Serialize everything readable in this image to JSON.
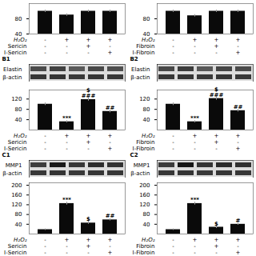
{
  "chart_data": [
    {
      "type": "bar",
      "categories": [
        null,
        null,
        null,
        null
      ],
      "values": [
        100,
        90,
        100,
        100
      ],
      "errors": [
        3,
        3,
        3,
        3
      ],
      "color": "#0a0a0a",
      "ylim": [
        40,
        120
      ],
      "yticks": [
        40,
        80
      ],
      "table": [
        {
          "name": "H₂O₂",
          "values": [
            "-",
            "+",
            "+",
            "+"
          ]
        },
        {
          "name": "Sericin",
          "values": [
            "-",
            "-",
            "+",
            "-"
          ]
        },
        {
          "name": "I-Sericin",
          "values": [
            "-",
            "-",
            "-",
            "+"
          ]
        }
      ]
    },
    {
      "type": "bar",
      "categories": [
        null,
        null,
        null,
        null
      ],
      "values": [
        100,
        88,
        100,
        100
      ],
      "errors": [
        3,
        3,
        3,
        3
      ],
      "color": "#0a0a0a",
      "ylim": [
        40,
        120
      ],
      "yticks": [
        40,
        80
      ],
      "table": [
        {
          "name": "H₂O₂",
          "values": [
            "-",
            "+",
            "+",
            "+"
          ]
        },
        {
          "name": "Fibroin",
          "values": [
            "-",
            "-",
            "+",
            "-"
          ]
        },
        {
          "name": "I-Fibroin",
          "values": [
            "-",
            "-",
            "-",
            "+"
          ]
        }
      ]
    },
    {
      "type": "blot",
      "title": "B1",
      "categories": [
        "Elastin",
        "β-actin"
      ],
      "cells": [
        [
          75,
          65,
          90,
          72,
          78
        ],
        [
          55,
          52,
          57,
          54,
          55
        ]
      ]
    },
    {
      "type": "bar",
      "categories": [
        null,
        null,
        null,
        null
      ],
      "values": [
        100,
        32,
        118,
        72
      ],
      "errors": [
        5,
        4,
        6,
        5
      ],
      "color": "#0a0a0a",
      "ylim": [
        0,
        155
      ],
      "yticks": [
        40,
        80,
        120
      ],
      "annotations": [
        {
          "text": "***",
          "index": 1,
          "y": 40
        },
        {
          "text": "$\n###",
          "index": 2,
          "y": 126
        },
        {
          "text": "##",
          "index": 3,
          "y": 80
        }
      ],
      "table": [
        {
          "name": "H₂O₂",
          "values": [
            "-",
            "+",
            "+",
            "+"
          ]
        },
        {
          "name": "Sericin",
          "values": [
            "-",
            "-",
            "+",
            "-"
          ]
        },
        {
          "name": "I-Sericin",
          "values": [
            "-",
            "-",
            "-",
            "+"
          ]
        }
      ]
    },
    {
      "type": "blot",
      "title": "B2",
      "categories": [
        "Elastin",
        "β-actin"
      ],
      "cells": [
        [
          72,
          60,
          88,
          70,
          75
        ],
        [
          55,
          52,
          57,
          54,
          55
        ]
      ]
    },
    {
      "type": "bar",
      "categories": [
        null,
        null,
        null,
        null
      ],
      "values": [
        100,
        32,
        122,
        75
      ],
      "errors": [
        5,
        4,
        6,
        5
      ],
      "color": "#0a0a0a",
      "ylim": [
        0,
        155
      ],
      "yticks": [
        40,
        80,
        120
      ],
      "annotations": [
        {
          "text": "***",
          "index": 1,
          "y": 40
        },
        {
          "text": "$\n###",
          "index": 2,
          "y": 130
        },
        {
          "text": "##",
          "index": 3,
          "y": 83
        }
      ],
      "table": [
        {
          "name": "H₂O₂",
          "values": [
            "-",
            "+",
            "+",
            "+"
          ]
        },
        {
          "name": "Fibroin",
          "values": [
            "-",
            "-",
            "+",
            "-"
          ]
        },
        {
          "name": "I-Fibroin",
          "values": [
            "-",
            "-",
            "-",
            "+"
          ]
        }
      ]
    },
    {
      "type": "blot",
      "title": "C1",
      "categories": [
        "MMP1",
        "β-actin"
      ],
      "cells": [
        [
          60,
          25,
          55,
          45,
          50
        ],
        [
          55,
          52,
          57,
          54,
          55
        ]
      ]
    },
    {
      "type": "bar",
      "categories": [
        null,
        null,
        null,
        null
      ],
      "values": [
        18,
        125,
        45,
        58
      ],
      "errors": [
        3,
        6,
        5,
        4
      ],
      "color": "#0a0a0a",
      "ylim": [
        0,
        210
      ],
      "yticks": [
        40,
        80,
        120,
        160,
        200
      ],
      "annotations": [
        {
          "text": "***",
          "index": 1,
          "y": 133
        },
        {
          "text": "$",
          "index": 2,
          "y": 53
        },
        {
          "text": "##",
          "index": 3,
          "y": 66
        }
      ],
      "table": [
        {
          "name": "H₂O₂",
          "values": [
            "-",
            "+",
            "+",
            "+"
          ]
        },
        {
          "name": "Sericin",
          "values": [
            "-",
            "-",
            "+",
            "-"
          ]
        },
        {
          "name": "I-Sericin",
          "values": [
            "-",
            "-",
            "-",
            "+"
          ]
        }
      ]
    },
    {
      "type": "blot",
      "title": "C2",
      "categories": [
        "MMP1",
        "β-actin"
      ],
      "cells": [
        [
          58,
          22,
          52,
          42,
          48
        ],
        [
          55,
          52,
          57,
          54,
          55
        ]
      ]
    },
    {
      "type": "bar",
      "categories": [
        null,
        null,
        null,
        null
      ],
      "values": [
        18,
        125,
        28,
        40
      ],
      "errors": [
        3,
        6,
        5,
        4
      ],
      "color": "#0a0a0a",
      "ylim": [
        0,
        210
      ],
      "yticks": [
        40,
        80,
        120,
        160,
        200
      ],
      "annotations": [
        {
          "text": "***",
          "index": 1,
          "y": 133
        },
        {
          "text": "$",
          "index": 2,
          "y": 36
        },
        {
          "text": "#",
          "index": 3,
          "y": 48
        }
      ],
      "table": [
        {
          "name": "H₂O₂",
          "values": [
            "-",
            "+",
            "+",
            "+"
          ]
        },
        {
          "name": "Fibroin",
          "values": [
            "-",
            "-",
            "+",
            "-"
          ]
        },
        {
          "name": "I-Fibroin",
          "values": [
            "-",
            "-",
            "-",
            "+"
          ]
        }
      ]
    }
  ]
}
